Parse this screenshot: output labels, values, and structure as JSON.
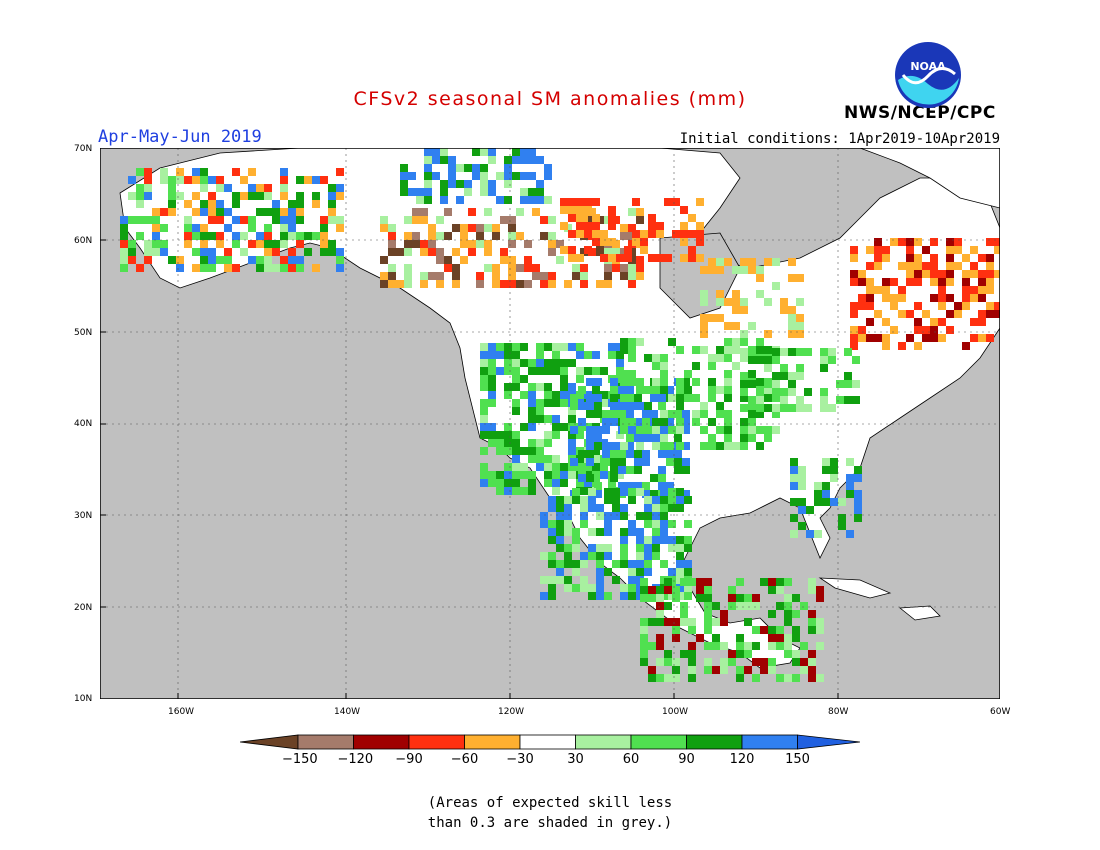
{
  "title": "CFSv2 seasonal SM anomalies (mm)",
  "period": "Apr-May-Jun 2019",
  "initial_conditions": "Initial conditions: 1Apr2019-10Apr2019",
  "agency": "NWS/NCEP/CPC",
  "logo_text": "NOAA",
  "lat_labels": [
    "70N",
    "60N",
    "50N",
    "40N",
    "30N",
    "20N",
    "10N"
  ],
  "lon_labels": [
    "160W",
    "140W",
    "120W",
    "100W",
    "80W",
    "60W"
  ],
  "colorbar": {
    "labels": [
      "-150",
      "-120",
      "-90",
      "-60",
      "-30",
      "30",
      "60",
      "90",
      "120",
      "150"
    ],
    "colors": [
      "#6b4226",
      "#a57b6b",
      "#a00000",
      "#ff3010",
      "#ffb030",
      "#ffffff",
      "#a8f0a0",
      "#50e050",
      "#10a010",
      "#3080f0",
      "#2060e0"
    ]
  },
  "note_line1": "(Areas of expected skill less",
  "note_line2": "than 0.3 are shaded in grey.)"
}
